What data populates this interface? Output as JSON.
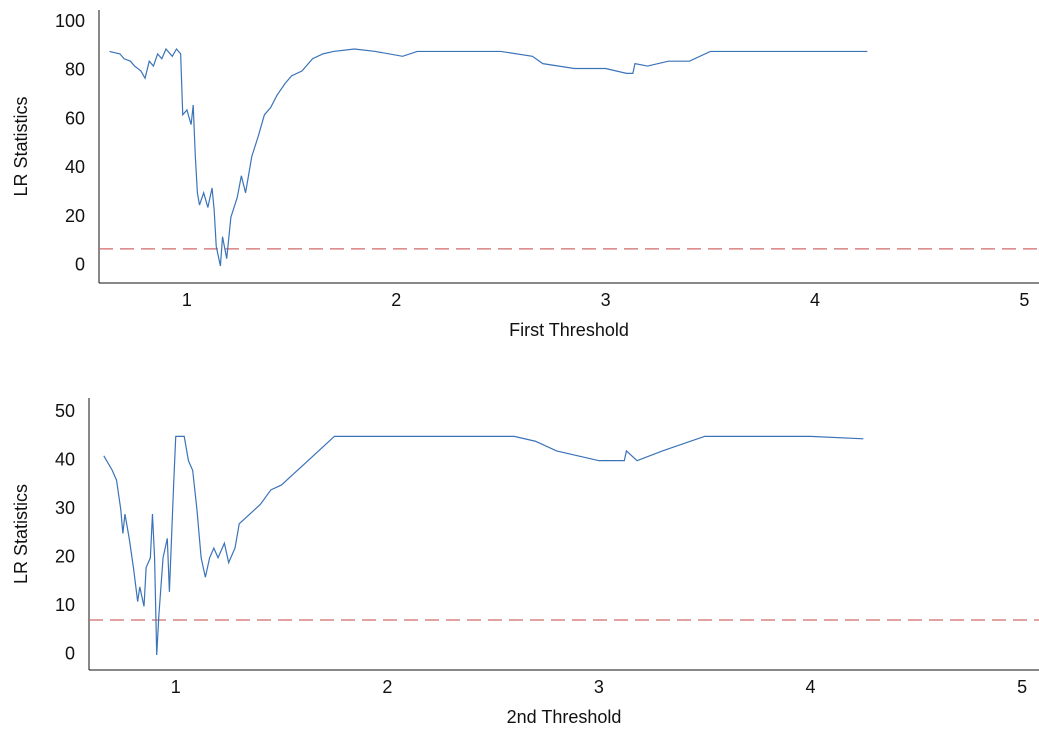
{
  "chart_data": [
    {
      "type": "line",
      "xlabel": "First Threshold",
      "ylabel": "LR Statistics",
      "color": "#3b73b9",
      "x": [
        0.63,
        0.68,
        0.7,
        0.73,
        0.75,
        0.78,
        0.8,
        0.82,
        0.84,
        0.86,
        0.88,
        0.9,
        0.93,
        0.95,
        0.97,
        0.98,
        1.0,
        1.02,
        1.03,
        1.04,
        1.05,
        1.06,
        1.08,
        1.1,
        1.12,
        1.13,
        1.14,
        1.15,
        1.16,
        1.17,
        1.19,
        1.21,
        1.24,
        1.26,
        1.28,
        1.31,
        1.34,
        1.37,
        1.4,
        1.43,
        1.47,
        1.5,
        1.55,
        1.6,
        1.65,
        1.7,
        1.8,
        1.9,
        2.03,
        2.1,
        2.3,
        2.5,
        2.65,
        2.7,
        2.85,
        3.0,
        3.1,
        3.13,
        3.14,
        3.2,
        3.3,
        3.4,
        3.5,
        3.7,
        4.0,
        4.25
      ],
      "values": [
        88,
        87,
        85,
        84,
        82,
        80,
        77,
        84,
        82,
        87,
        85,
        89,
        86,
        89,
        87,
        62,
        64,
        58,
        66,
        45,
        30,
        25,
        30,
        24,
        32,
        23,
        8,
        4,
        0,
        12,
        3,
        20,
        28,
        37,
        30,
        45,
        53,
        62,
        65,
        70,
        75,
        78,
        80,
        85,
        87,
        88,
        89,
        88,
        86,
        88,
        88,
        88,
        86,
        83,
        81,
        81,
        79,
        79,
        83,
        82,
        84,
        84,
        88,
        88,
        88,
        88
      ],
      "threshold": 7.0,
      "threshold_color": "#d06a6a",
      "xlim": [
        0.58,
        5.07
      ],
      "xticks": [
        1,
        2,
        3,
        4,
        5
      ],
      "ylim": [
        -7,
        105
      ],
      "yticks": [
        0,
        20,
        40,
        60,
        80,
        100
      ]
    },
    {
      "type": "line",
      "xlabel": "2nd Threshold",
      "ylabel": "LR Statistics",
      "color": "#3b73b9",
      "x": [
        0.66,
        0.7,
        0.72,
        0.74,
        0.75,
        0.76,
        0.78,
        0.8,
        0.82,
        0.83,
        0.85,
        0.86,
        0.88,
        0.89,
        0.9,
        0.91,
        0.92,
        0.94,
        0.96,
        0.97,
        0.99,
        1.0,
        1.04,
        1.06,
        1.08,
        1.1,
        1.12,
        1.14,
        1.16,
        1.18,
        1.2,
        1.23,
        1.25,
        1.28,
        1.3,
        1.35,
        1.4,
        1.45,
        1.5,
        1.55,
        1.6,
        1.65,
        1.7,
        1.75,
        1.85,
        2.0,
        2.3,
        2.6,
        2.7,
        2.8,
        3.0,
        3.12,
        3.13,
        3.18,
        3.3,
        3.5,
        4.0,
        4.25
      ],
      "values": [
        41,
        38,
        36,
        30,
        25,
        29,
        24,
        18,
        11,
        14,
        10,
        18,
        20,
        29,
        20,
        0,
        8,
        20,
        24,
        13,
        35,
        45,
        45,
        40,
        38,
        30,
        20,
        16,
        20,
        22,
        20,
        23,
        19,
        22,
        27,
        29,
        31,
        34,
        35,
        37,
        39,
        41,
        43,
        45,
        45,
        45,
        45,
        45,
        44,
        42,
        40,
        40,
        42,
        40,
        42,
        45,
        45,
        44.5
      ],
      "threshold": 7.2,
      "threshold_color": "#d06a6a",
      "xlim": [
        0.59,
        5.08
      ],
      "xticks": [
        1,
        2,
        3,
        4,
        5
      ],
      "ylim": [
        -3.1,
        52.9
      ],
      "yticks": [
        0,
        10,
        20,
        30,
        40,
        50
      ]
    }
  ]
}
